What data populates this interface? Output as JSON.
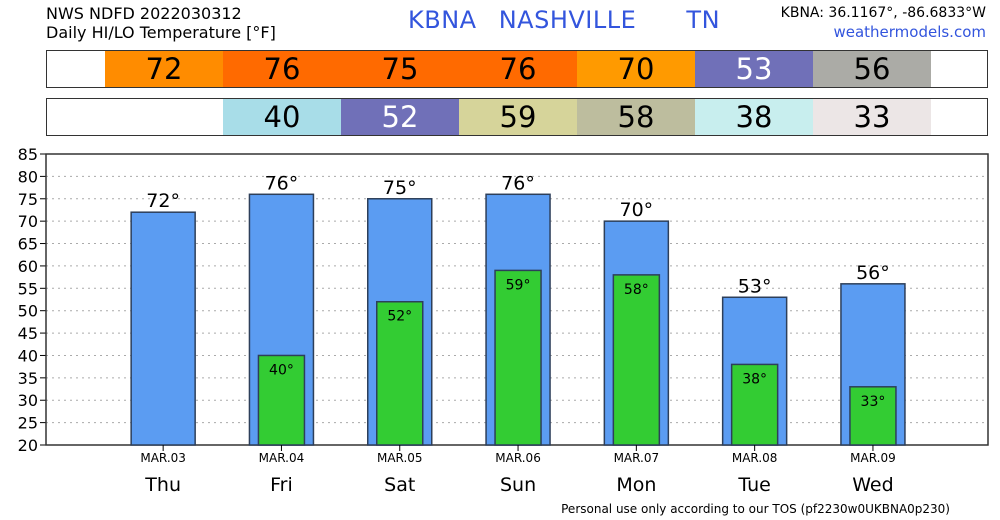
{
  "header": {
    "product_line": "NWS NDFD 2022030312",
    "subtitle": "Daily HI/LO Temperature [°F]",
    "station": "KBNA",
    "city": "NASHVILLE",
    "state": "TN",
    "coords": "KBNA: 36.1167°, -86.6833°W",
    "site": "weathermodels.com"
  },
  "hi_strip": [
    {
      "text": "72",
      "color": "#ff8c00",
      "text_color": "#000000"
    },
    {
      "text": "76",
      "color": "#ff6a00",
      "text_color": "#000000"
    },
    {
      "text": "75",
      "color": "#ff6a00",
      "text_color": "#000000"
    },
    {
      "text": "76",
      "color": "#ff6a00",
      "text_color": "#000000"
    },
    {
      "text": "70",
      "color": "#ff9a00",
      "text_color": "#000000"
    },
    {
      "text": "53",
      "color": "#7070b8",
      "text_color": "#ffffff"
    },
    {
      "text": "56",
      "color": "#ababa6",
      "text_color": "#000000"
    }
  ],
  "lo_strip": [
    {
      "text": "",
      "color": "#ffffff",
      "text_color": "#000000"
    },
    {
      "text": "40",
      "color": "#a8dde8",
      "text_color": "#000000"
    },
    {
      "text": "52",
      "color": "#7070b8",
      "text_color": "#ffffff"
    },
    {
      "text": "59",
      "color": "#d6d49a",
      "text_color": "#000000"
    },
    {
      "text": "58",
      "color": "#bdbd9e",
      "text_color": "#000000"
    },
    {
      "text": "38",
      "color": "#c8eeee",
      "text_color": "#000000"
    },
    {
      "text": "33",
      "color": "#ece6e6",
      "text_color": "#000000"
    }
  ],
  "chart_data": {
    "type": "bar",
    "categories": [
      "MAR.03",
      "MAR.04",
      "MAR.05",
      "MAR.06",
      "MAR.07",
      "MAR.08",
      "MAR.09"
    ],
    "days": [
      "Thu",
      "Fri",
      "Sat",
      "Sun",
      "Mon",
      "Tue",
      "Wed"
    ],
    "series": [
      {
        "values": [
          72,
          76,
          75,
          76,
          70,
          53,
          56
        ],
        "color": "#5b9cf2",
        "labels": [
          "72°",
          "76°",
          "75°",
          "76°",
          "70°",
          "53°",
          "56°"
        ]
      },
      {
        "values": [
          null,
          40,
          52,
          59,
          58,
          38,
          33
        ],
        "color": "#33cc33",
        "labels": [
          "",
          "40°",
          "52°",
          "59°",
          "58°",
          "38°",
          "33°"
        ]
      }
    ],
    "ylim": [
      20,
      85
    ],
    "yticks": [
      20,
      25,
      30,
      35,
      40,
      45,
      50,
      55,
      60,
      65,
      70,
      75,
      80,
      85
    ],
    "grid": true,
    "xlabel": "",
    "ylabel": ""
  },
  "footer": "Personal use only according to our TOS (pf2230w0UKBNA0p230)"
}
